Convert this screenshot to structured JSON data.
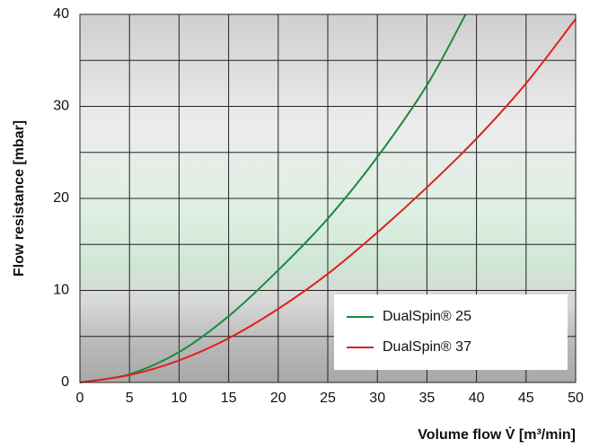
{
  "chart_data": {
    "type": "line",
    "x_label": "Volume flow V̇ [m³/min]",
    "y_label": "Flow resistance [mbar]",
    "xlim": [
      0,
      50
    ],
    "xticks": [
      0,
      5,
      10,
      15,
      20,
      25,
      30,
      35,
      40,
      45,
      50
    ],
    "ylim": [
      0,
      40
    ],
    "yticks": [
      0,
      10,
      20,
      30,
      40
    ],
    "yminor": [
      5,
      15,
      25,
      35
    ],
    "grid": true,
    "legend": "lower right",
    "series": [
      {
        "name": "DualSpin® 25",
        "color": "#1a8a3c",
        "x": [
          0,
          5,
          10,
          15,
          20,
          25,
          30,
          35,
          38.9
        ],
        "values": [
          0,
          0.9,
          3.3,
          7.2,
          12.2,
          17.8,
          24.5,
          32.3,
          40
        ]
      },
      {
        "name": "DualSpin® 37",
        "color": "#e0201e",
        "x": [
          0,
          5,
          10,
          15,
          20,
          25,
          30,
          35,
          40,
          45,
          50
        ],
        "values": [
          0,
          0.8,
          2.4,
          4.8,
          8,
          11.8,
          16.3,
          21.2,
          26.5,
          32.5,
          39.5
        ]
      }
    ]
  }
}
